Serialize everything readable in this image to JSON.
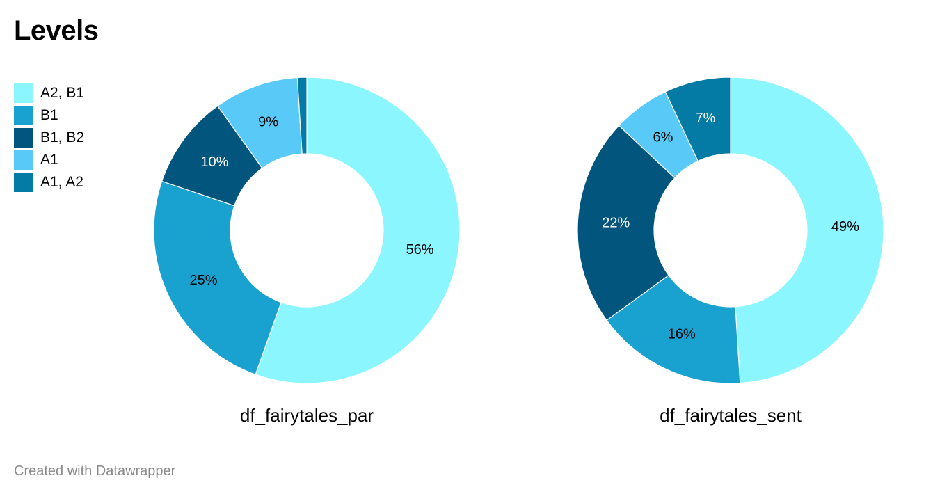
{
  "title": "Levels",
  "footer": "Created with Datawrapper",
  "legend": [
    {
      "label": "A2, B1",
      "color": "#8cf6ff"
    },
    {
      "label": "B1",
      "color": "#19a2cf"
    },
    {
      "label": "B1, B2",
      "color": "#02567d"
    },
    {
      "label": "A1",
      "color": "#59caf7"
    },
    {
      "label": "A1, A2",
      "color": "#047ba5"
    }
  ],
  "chart_data": [
    {
      "type": "pie",
      "title": "df_fairytales_par",
      "categories": [
        "A2, B1",
        "B1",
        "B1, B2",
        "A1",
        "A1, A2"
      ],
      "values": [
        56,
        25,
        10,
        9,
        1
      ],
      "labels": [
        "56%",
        "25%",
        "10%",
        "9%",
        ""
      ],
      "colors": [
        "#8cf6ff",
        "#19a2cf",
        "#02567d",
        "#59caf7",
        "#047ba5"
      ],
      "donut": true
    },
    {
      "type": "pie",
      "title": "df_fairytales_sent",
      "categories": [
        "A2, B1",
        "B1",
        "B1, B2",
        "A1",
        "A1, A2"
      ],
      "values": [
        49,
        16,
        22,
        6,
        7
      ],
      "labels": [
        "49%",
        "16%",
        "22%",
        "6%",
        "7%"
      ],
      "colors": [
        "#8cf6ff",
        "#19a2cf",
        "#02567d",
        "#59caf7",
        "#047ba5"
      ],
      "donut": true
    }
  ]
}
